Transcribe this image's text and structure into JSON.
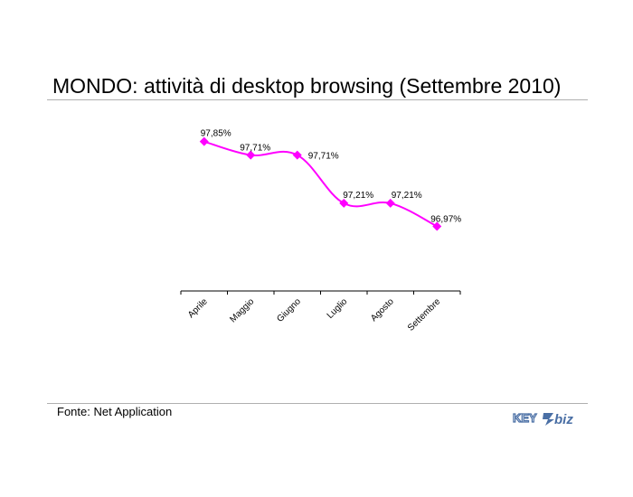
{
  "title": "MONDO: attività di desktop browsing (Settembre 2010)",
  "source": "Fonte: Net Application",
  "logo": {
    "part1": "KEY",
    "part2": "biz",
    "icon": "key4biz-logo-icon"
  },
  "colors": {
    "series": "#ff00ff",
    "axis": "#000000",
    "rule": "#b0b0b0"
  },
  "chart_data": {
    "type": "line",
    "categories": [
      "Aprile",
      "Maggio",
      "Giugno",
      "Luglio",
      "Agosto",
      "Settembre"
    ],
    "values": [
      97.85,
      97.71,
      97.71,
      97.21,
      97.21,
      96.97
    ],
    "data_labels": [
      "97,85%",
      "97,71%",
      "97,71%",
      "97,21%",
      "97,21%",
      "96,97%"
    ],
    "ylim": [
      96.3,
      98.1
    ],
    "grid": false,
    "legend": "none"
  }
}
